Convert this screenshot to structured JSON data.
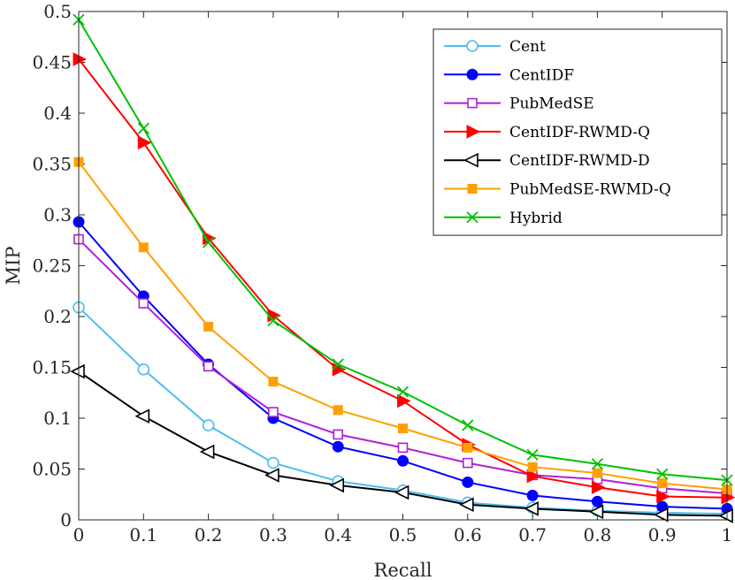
{
  "chart_data": {
    "type": "line",
    "title": "",
    "xlabel": "Recall",
    "ylabel": "MIP",
    "xlim": [
      0,
      1
    ],
    "ylim": [
      0,
      0.5
    ],
    "x": [
      0,
      0.1,
      0.2,
      0.3,
      0.4,
      0.5,
      0.6,
      0.7,
      0.8,
      0.9,
      1
    ],
    "x_ticks": [
      "0",
      "0.1",
      "0.2",
      "0.3",
      "0.4",
      "0.5",
      "0.6",
      "0.7",
      "0.8",
      "0.9",
      "1"
    ],
    "y_ticks": [
      "0",
      "0.05",
      "0.1",
      "0.15",
      "0.2",
      "0.25",
      "0.3",
      "0.35",
      "0.4",
      "0.45",
      "0.5"
    ],
    "legend_position": "top-right",
    "series": [
      {
        "name": "Cent",
        "color": "#4DBEEE",
        "marker": "circle-open",
        "values": [
          0.209,
          0.148,
          0.093,
          0.056,
          0.038,
          0.029,
          0.017,
          0.012,
          0.009,
          0.007,
          0.006
        ]
      },
      {
        "name": "CentIDF",
        "color": "#0000FF",
        "marker": "circle-filled",
        "values": [
          0.293,
          0.22,
          0.153,
          0.1,
          0.072,
          0.058,
          0.037,
          0.024,
          0.018,
          0.013,
          0.011
        ]
      },
      {
        "name": "PubMedSE",
        "color": "#B31FD8",
        "marker": "square-open",
        "values": [
          0.276,
          0.213,
          0.151,
          0.106,
          0.084,
          0.071,
          0.056,
          0.044,
          0.04,
          0.031,
          0.026
        ]
      },
      {
        "name": "CentIDF-RWMD-Q",
        "color": "#FF0000",
        "marker": "triangle-right-filled",
        "values": [
          0.453,
          0.371,
          0.277,
          0.201,
          0.148,
          0.117,
          0.074,
          0.043,
          0.032,
          0.023,
          0.022
        ]
      },
      {
        "name": "CentIDF-RWMD-D",
        "color": "#000000",
        "marker": "triangle-left-open",
        "values": [
          0.146,
          0.102,
          0.067,
          0.044,
          0.034,
          0.027,
          0.015,
          0.011,
          0.008,
          0.005,
          0.004
        ]
      },
      {
        "name": "PubMedSE-RWMD-Q",
        "color": "#FFA000",
        "marker": "square-filled",
        "values": [
          0.352,
          0.268,
          0.19,
          0.136,
          0.108,
          0.09,
          0.071,
          0.052,
          0.046,
          0.036,
          0.03
        ]
      },
      {
        "name": "Hybrid",
        "color": "#00C000",
        "marker": "x",
        "values": [
          0.492,
          0.385,
          0.273,
          0.196,
          0.153,
          0.126,
          0.093,
          0.064,
          0.055,
          0.045,
          0.039
        ]
      }
    ]
  }
}
